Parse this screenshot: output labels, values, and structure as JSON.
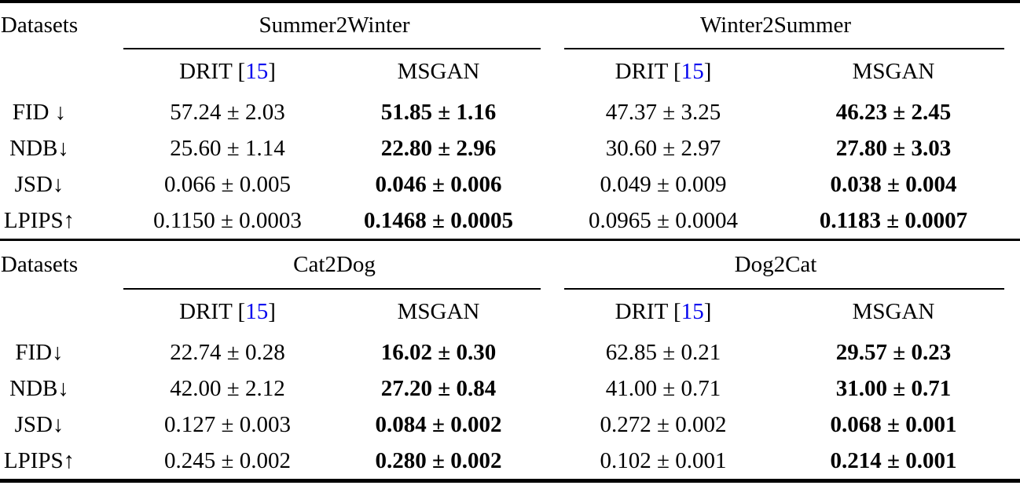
{
  "colors": {
    "text": "#000000",
    "background": "#ffffff",
    "citation_blue": "#0000EE",
    "rule": "#000000"
  },
  "method": {
    "drit_pre": "DRIT [",
    "drit_cite": "15",
    "drit_post": "]",
    "msgan": "MSGAN"
  },
  "table": {
    "sections": [
      {
        "row_header": "Datasets",
        "groups": [
          {
            "name": "Summer2Winter"
          },
          {
            "name": "Winter2Summer"
          }
        ],
        "rows": [
          {
            "metric": "FID ↓",
            "values": [
              "57.24 ± 2.03",
              "51.85 ± 1.16",
              "47.37 ± 3.25",
              "46.23 ± 2.45"
            ]
          },
          {
            "metric": "NDB↓",
            "values": [
              "25.60 ± 1.14",
              "22.80 ± 2.96",
              "30.60 ± 2.97",
              "27.80 ± 3.03"
            ]
          },
          {
            "metric": "JSD↓",
            "values": [
              "0.066 ± 0.005",
              "0.046 ± 0.006",
              "0.049 ± 0.009",
              "0.038 ± 0.004"
            ]
          },
          {
            "metric": "LPIPS↑",
            "values": [
              "0.1150 ± 0.0003",
              "0.1468 ± 0.0005",
              "0.0965 ± 0.0004",
              "0.1183 ± 0.0007"
            ]
          }
        ]
      },
      {
        "row_header": "Datasets",
        "groups": [
          {
            "name": "Cat2Dog"
          },
          {
            "name": "Dog2Cat"
          }
        ],
        "rows": [
          {
            "metric": "FID↓",
            "values": [
              "22.74 ± 0.28",
              "16.02 ± 0.30",
              "62.85 ± 0.21",
              "29.57 ± 0.23"
            ]
          },
          {
            "metric": "NDB↓",
            "values": [
              "42.00 ± 2.12",
              "27.20 ± 0.84",
              "41.00 ± 0.71",
              "31.00 ± 0.71"
            ]
          },
          {
            "metric": "JSD↓",
            "values": [
              "0.127 ± 0.003",
              "0.084 ± 0.002",
              "0.272 ± 0.002",
              "0.068 ± 0.001"
            ]
          },
          {
            "metric": "LPIPS↑",
            "values": [
              "0.245 ± 0.002",
              "0.280 ± 0.002",
              "0.102 ± 0.001",
              "0.214 ± 0.001"
            ]
          }
        ]
      }
    ]
  }
}
